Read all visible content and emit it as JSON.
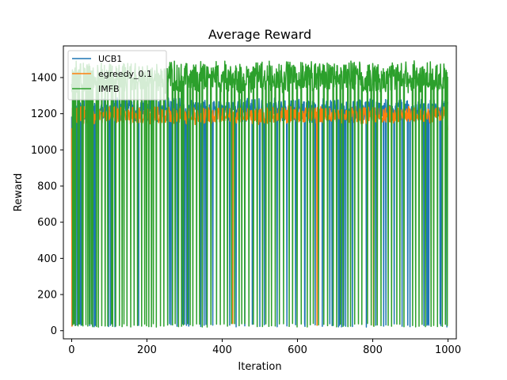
{
  "chart_data": {
    "type": "line",
    "title": "Average Reward",
    "xlabel": "Iteration",
    "ylabel": "Reward",
    "xlim": [
      -22,
      1022
    ],
    "ylim": [
      -45,
      1575
    ],
    "xticks": [
      0,
      200,
      400,
      600,
      800,
      1000
    ],
    "yticks": [
      0,
      200,
      400,
      600,
      800,
      1000,
      1200,
      1400
    ],
    "n_points": 1000,
    "legend_position": "upper-left",
    "series": [
      {
        "name": "UCB1",
        "color": "#1f77b4",
        "typical_range": [
          1150,
          1290
        ],
        "low_value_range": [
          20,
          40
        ],
        "drop_iterations": [
          1,
          9,
          14,
          22,
          25,
          48,
          55,
          60,
          63,
          98,
          103,
          115,
          178,
          260,
          264,
          280,
          295,
          300,
          305,
          311,
          343,
          352,
          357,
          375,
          420,
          437,
          460,
          480,
          500,
          512,
          546,
          572,
          595,
          619,
          620,
          647,
          666,
          686,
          692,
          709,
          711,
          717,
          723,
          728,
          746,
          783,
          808,
          829,
          835,
          857,
          878,
          893,
          899,
          936,
          944,
          946,
          949,
          979,
          981,
          997
        ],
        "end_value": 1265
      },
      {
        "name": "egreedy_0.1",
        "color": "#ff7f0e",
        "typical_range": [
          1140,
          1245
        ],
        "low_value_range": [
          20,
          40
        ],
        "start_value": 1120,
        "drop_iterations": [
          1,
          428,
          652,
          802
        ],
        "end_value": 1110
      },
      {
        "name": "IMFB",
        "color": "#2ca02c",
        "typical_range": [
          1310,
          1495
        ],
        "low_value_range": [
          20,
          40
        ],
        "drop_iterations": [
          3,
          6,
          10,
          17,
          20,
          28,
          30,
          38,
          43,
          47,
          52,
          56,
          66,
          71,
          80,
          89,
          96,
          106,
          109,
          117,
          127,
          134,
          139,
          147,
          157,
          166,
          175,
          186,
          194,
          199,
          205,
          212,
          217,
          225,
          236,
          245,
          255,
          268,
          275,
          284,
          292,
          297,
          308,
          315,
          322,
          332,
          340,
          347,
          360,
          370,
          385,
          395,
          405,
          414,
          425,
          433,
          445,
          452,
          460,
          471,
          483,
          493,
          507,
          516,
          524,
          531,
          541,
          552,
          563,
          578,
          587,
          599,
          610,
          626,
          634,
          642,
          656,
          670,
          680,
          695,
          704,
          714,
          721,
          734,
          741,
          752,
          762,
          771,
          786,
          796,
          803,
          812,
          822,
          841,
          850,
          864,
          872,
          883,
          906,
          914,
          923,
          931,
          940,
          955,
          962,
          972,
          985,
          993,
          998
        ],
        "end_value": 1405
      }
    ]
  }
}
